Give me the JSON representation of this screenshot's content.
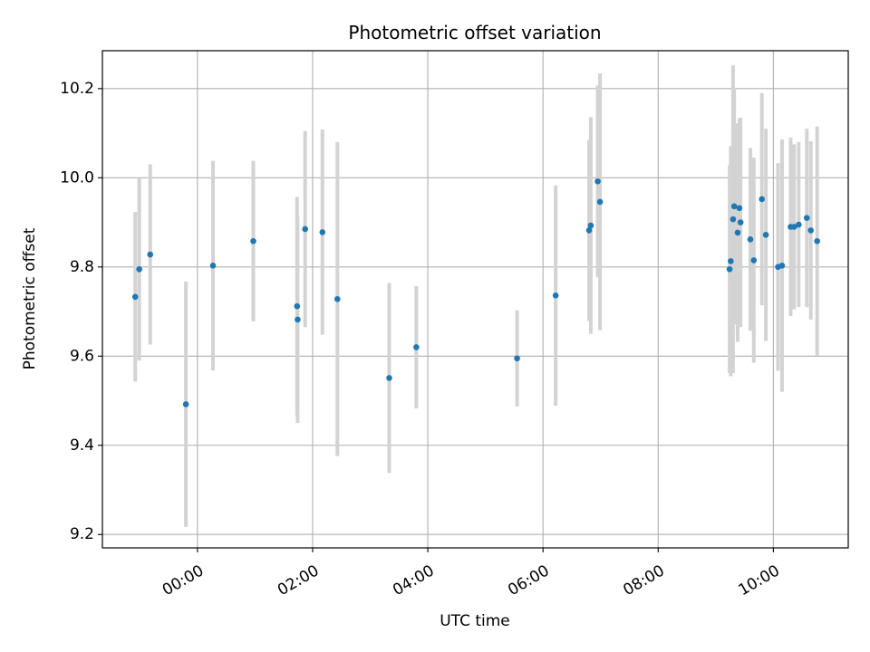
{
  "chart_data": {
    "type": "scatter",
    "title": "Photometric offset variation",
    "xlabel": "UTC time",
    "ylabel": "Photometric offset",
    "xlim": [
      -1.65,
      11.3
    ],
    "ylim": [
      9.17,
      10.285
    ],
    "grid": true,
    "x_ticks": [
      {
        "value": 0,
        "label": "00:00"
      },
      {
        "value": 2,
        "label": "02:00"
      },
      {
        "value": 4,
        "label": "04:00"
      },
      {
        "value": 6,
        "label": "06:00"
      },
      {
        "value": 8,
        "label": "08:00"
      },
      {
        "value": 10,
        "label": "10:00"
      }
    ],
    "y_ticks": [
      {
        "value": 9.2,
        "label": "9.2"
      },
      {
        "value": 9.4,
        "label": "9.4"
      },
      {
        "value": 9.6,
        "label": "9.6"
      },
      {
        "value": 9.8,
        "label": "9.8"
      },
      {
        "value": 10.0,
        "label": "10.0"
      },
      {
        "value": 10.2,
        "label": "10.2"
      }
    ],
    "point_color": "#1f77b4",
    "errorbar_color": "#d3d3d3",
    "points": [
      {
        "x": -1.08,
        "y": 9.733,
        "err": 0.19
      },
      {
        "x": -1.01,
        "y": 9.795,
        "err": 0.205
      },
      {
        "x": -0.82,
        "y": 9.828,
        "err": 0.202
      },
      {
        "x": -0.2,
        "y": 9.492,
        "err": 0.275
      },
      {
        "x": 0.27,
        "y": 9.803,
        "err": 0.235
      },
      {
        "x": 0.97,
        "y": 9.858,
        "err": 0.18
      },
      {
        "x": 1.73,
        "y": 9.712,
        "err": 0.245
      },
      {
        "x": 1.74,
        "y": 9.682,
        "err": 0.232
      },
      {
        "x": 1.87,
        "y": 9.885,
        "err": 0.22
      },
      {
        "x": 2.17,
        "y": 9.878,
        "err": 0.23
      },
      {
        "x": 2.43,
        "y": 9.728,
        "err": 0.352
      },
      {
        "x": 3.33,
        "y": 9.551,
        "err": 0.213
      },
      {
        "x": 3.8,
        "y": 9.62,
        "err": 0.137
      },
      {
        "x": 5.55,
        "y": 9.595,
        "err": 0.108
      },
      {
        "x": 6.22,
        "y": 9.736,
        "err": 0.247
      },
      {
        "x": 6.8,
        "y": 9.882,
        "err": 0.203
      },
      {
        "x": 6.83,
        "y": 9.893,
        "err": 0.243
      },
      {
        "x": 6.95,
        "y": 9.992,
        "err": 0.215
      },
      {
        "x": 6.99,
        "y": 9.946,
        "err": 0.288
      },
      {
        "x": 9.24,
        "y": 9.795,
        "err": 0.233
      },
      {
        "x": 9.26,
        "y": 9.813,
        "err": 0.258
      },
      {
        "x": 9.3,
        "y": 9.907,
        "err": 0.345
      },
      {
        "x": 9.32,
        "y": 9.936,
        "err": 0.265
      },
      {
        "x": 9.38,
        "y": 9.877,
        "err": 0.245
      },
      {
        "x": 9.41,
        "y": 9.932,
        "err": 0.2
      },
      {
        "x": 9.43,
        "y": 9.9,
        "err": 0.235
      },
      {
        "x": 9.6,
        "y": 9.862,
        "err": 0.205
      },
      {
        "x": 9.66,
        "y": 9.815,
        "err": 0.23
      },
      {
        "x": 9.8,
        "y": 9.952,
        "err": 0.238
      },
      {
        "x": 9.87,
        "y": 9.872,
        "err": 0.238
      },
      {
        "x": 10.08,
        "y": 9.8,
        "err": 0.233
      },
      {
        "x": 10.15,
        "y": 9.803,
        "err": 0.283
      },
      {
        "x": 10.3,
        "y": 9.89,
        "err": 0.2
      },
      {
        "x": 10.36,
        "y": 9.89,
        "err": 0.185
      },
      {
        "x": 10.44,
        "y": 9.895,
        "err": 0.185
      },
      {
        "x": 10.58,
        "y": 9.91,
        "err": 0.2
      },
      {
        "x": 10.65,
        "y": 9.882,
        "err": 0.2
      },
      {
        "x": 10.76,
        "y": 9.858,
        "err": 0.257
      }
    ]
  }
}
